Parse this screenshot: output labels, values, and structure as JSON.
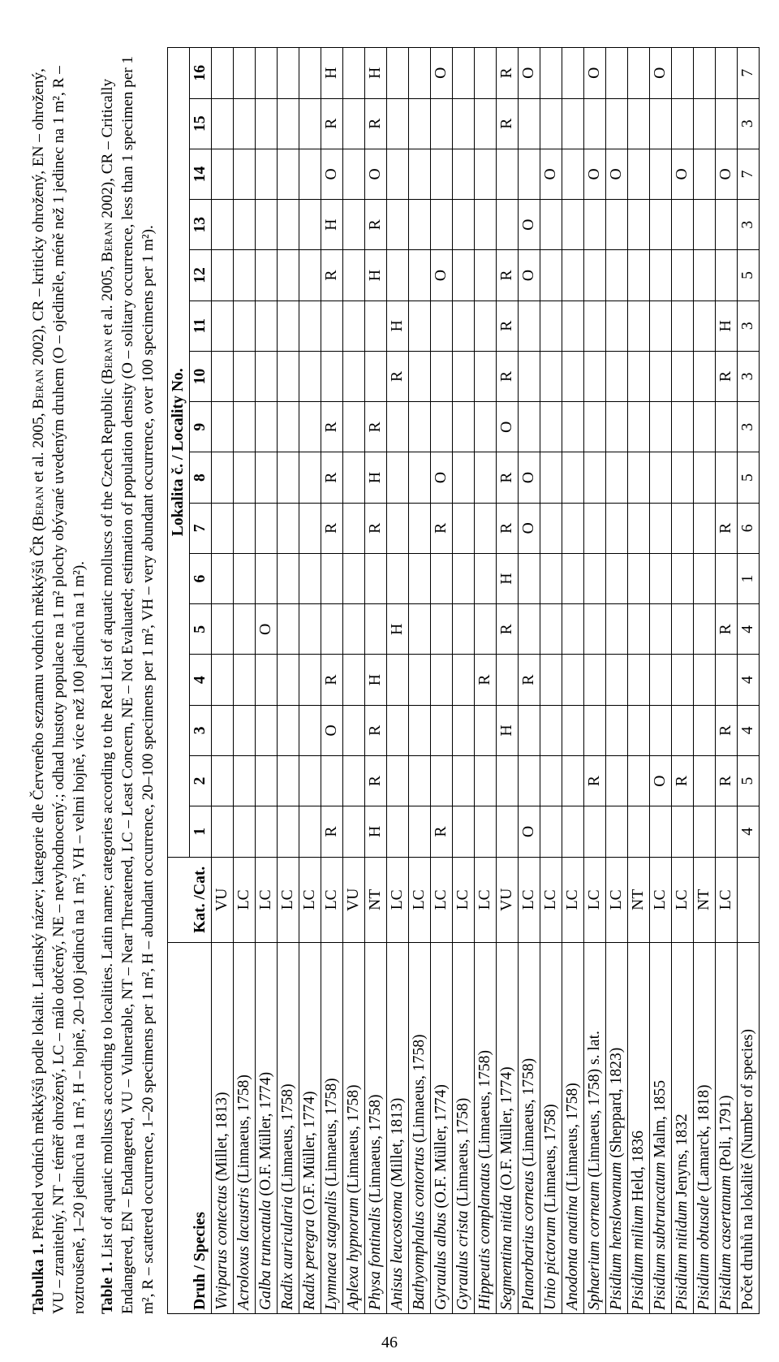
{
  "page_number": "46",
  "caption_cz_parts": [
    {
      "t": "Tabulka 1.",
      "b": true
    },
    {
      "t": " Přehled vodních měkkýšů podle lokalit. Latinský název; kategorie dle Červeného seznamu vodních měkkýšů ČR ("
    },
    {
      "t": "Beran",
      "sc": true
    },
    {
      "t": " et al. 2005, "
    },
    {
      "t": "Beran",
      "sc": true
    },
    {
      "t": " 2002), CR – kriticky ohrožený, EN – ohrožený, VU – zranitelný, NT – téměř ohrožený, LC – málo dotčený, NE – nevyhodnocený.; odhad hustoty populace na 1 m² plochy obývané uvedeným druhem (O – ojediněle, méně než 1 jedinec na 1 m², R – roztroušeně, 1–20 jedinců na 1 m², H – hojně, 20–100 jedinců na 1 m², VH – velmi hojně, více než 100 jedinců na 1 m²)."
    }
  ],
  "caption_en_parts": [
    {
      "t": "Table 1.",
      "b": true
    },
    {
      "t": " List of aquatic molluscs according to localities. Latin name; categories according to the Red List of aquatic molluscs of the Czech Republic ("
    },
    {
      "t": "Beran",
      "sc": true
    },
    {
      "t": " et al. 2005, "
    },
    {
      "t": "Beran",
      "sc": true
    },
    {
      "t": " 2002), CR – Critically Endangered, EN – Endangered, VU – Vulnerable, NT – Near Threatened, LC – Least Concern, NE – Not Evaluated; estimation of population density (O – solitary occurrence, less than 1 specimen per 1 m², R – scattered occurrence, 1–20 specimens per 1 m², H – abundant occurrence, 20–100 specimens per 1 m², VH – very abundant occurrence, over 100 specimens per 1 m²)."
    }
  ],
  "headers": {
    "species": "Druh / Species",
    "cat": "Kat. /Cat.",
    "locality": "Lokalita č. / Locality No.",
    "loc_nums": [
      "1",
      "2",
      "3",
      "4",
      "5",
      "6",
      "7",
      "8",
      "9",
      "10",
      "11",
      "12",
      "13",
      "14",
      "15",
      "16"
    ]
  },
  "rows": [
    {
      "sp_i": "Viviparus contectus",
      "sp_r": " (Millet, 1813)",
      "cat": "VU",
      "v": [
        "",
        "",
        "",
        "",
        "",
        "",
        "",
        "",
        "",
        "",
        "",
        "",
        "",
        "",
        "",
        ""
      ]
    },
    {
      "sp_i": "Acroloxus lacustris",
      "sp_r": " (Linnaeus, 1758)",
      "cat": "LC",
      "v": [
        "",
        "",
        "",
        "",
        "",
        "",
        "",
        "",
        "",
        "",
        "",
        "",
        "",
        "",
        "",
        ""
      ]
    },
    {
      "sp_i": "Galba truncatula",
      "sp_r": " (O.F. Müller, 1774)",
      "cat": "LC",
      "v": [
        "",
        "",
        "",
        "",
        "O",
        "",
        "",
        "",
        "",
        "",
        "",
        "",
        "",
        "",
        "",
        ""
      ]
    },
    {
      "sp_i": "Radix auricularia",
      "sp_r": " (Linnaeus, 1758)",
      "cat": "LC",
      "v": [
        "",
        "",
        "",
        "",
        "",
        "",
        "",
        "",
        "",
        "",
        "",
        "",
        "",
        "",
        "",
        ""
      ]
    },
    {
      "sp_i": "Radix peregra",
      "sp_r": " (O.F. Müller, 1774)",
      "cat": "LC",
      "v": [
        "",
        "",
        "",
        "",
        "",
        "",
        "",
        "",
        "",
        "",
        "",
        "",
        "",
        "",
        "",
        ""
      ]
    },
    {
      "sp_i": "Lymnaea stagnalis",
      "sp_r": " (Linnaeus, 1758)",
      "cat": "LC",
      "v": [
        "R",
        "",
        "O",
        "R",
        "",
        "",
        "R",
        "R",
        "R",
        "",
        "",
        "R",
        "H",
        "O",
        "R",
        "H"
      ]
    },
    {
      "sp_i": "Aplexa hypnorum",
      "sp_r": " (Linnaeus, 1758)",
      "cat": "VU",
      "v": [
        "",
        "",
        "",
        "",
        "",
        "",
        "",
        "",
        "",
        "",
        "",
        "",
        "",
        "",
        "",
        ""
      ]
    },
    {
      "sp_i": "Physa fontinalis",
      "sp_r": " (Linnaeus, 1758)",
      "cat": "NT",
      "v": [
        "H",
        "R",
        "R",
        "H",
        "",
        "",
        "R",
        "H",
        "R",
        "",
        "",
        "H",
        "R",
        "O",
        "R",
        "H"
      ]
    },
    {
      "sp_i": "Anisus leucostoma",
      "sp_r": " (Millet, 1813)",
      "cat": "LC",
      "v": [
        "",
        "",
        "",
        "",
        "H",
        "",
        "",
        "",
        "",
        "R",
        "H",
        "",
        "",
        "",
        "",
        ""
      ]
    },
    {
      "sp_i": "Bathyomphalus contortus",
      "sp_r": " (Linnaeus, 1758)",
      "cat": "LC",
      "v": [
        "",
        "",
        "",
        "",
        "",
        "",
        "",
        "",
        "",
        "",
        "",
        "",
        "",
        "",
        "",
        ""
      ]
    },
    {
      "sp_i": "Gyraulus albus",
      "sp_r": " (O.F. Müller, 1774)",
      "cat": "LC",
      "v": [
        "R",
        "",
        "",
        "",
        "",
        "",
        "R",
        "O",
        "",
        "",
        "",
        "O",
        "",
        "",
        "",
        "O"
      ]
    },
    {
      "sp_i": "Gyraulus crista",
      "sp_r": " (Linnaeus, 1758)",
      "cat": "LC",
      "v": [
        "",
        "",
        "",
        "",
        "",
        "",
        "",
        "",
        "",
        "",
        "",
        "",
        "",
        "",
        "",
        ""
      ]
    },
    {
      "sp_i": "Hippeutis complanatus",
      "sp_r": " (Linnaeus, 1758)",
      "cat": "LC",
      "v": [
        "",
        "",
        "",
        "R",
        "",
        "",
        "",
        "",
        "",
        "",
        "",
        "",
        "",
        "",
        "",
        ""
      ]
    },
    {
      "sp_i": "Segmentina nitida",
      "sp_r": " (O.F. Müller, 1774)",
      "cat": "VU",
      "v": [
        "",
        "",
        "H",
        "",
        "R",
        "H",
        "R",
        "R",
        "O",
        "R",
        "R",
        "R",
        "",
        "",
        "R",
        "R"
      ]
    },
    {
      "sp_i": "Planorbarius corneus",
      "sp_r": " (Linnaeus, 1758)",
      "cat": "LC",
      "v": [
        "O",
        "",
        "",
        "R",
        "",
        "",
        "O",
        "O",
        "",
        "",
        "",
        "O",
        "O",
        "",
        "",
        "O"
      ]
    },
    {
      "sp_i": "Unio pictorum",
      "sp_r": " (Linnaeus, 1758)",
      "cat": "LC",
      "v": [
        "",
        "",
        "",
        "",
        "",
        "",
        "",
        "",
        "",
        "",
        "",
        "",
        "",
        "O",
        "",
        ""
      ]
    },
    {
      "sp_i": "Anodonta anatina",
      "sp_r": " (Linnaeus, 1758)",
      "cat": "LC",
      "v": [
        "",
        "",
        "",
        "",
        "",
        "",
        "",
        "",
        "",
        "",
        "",
        "",
        "",
        "",
        "",
        ""
      ]
    },
    {
      "sp_i": "Sphaerium corneum",
      "sp_r": " (Linnaeus, 1758) s. lat.",
      "cat": "LC",
      "v": [
        "",
        "R",
        "",
        "",
        "",
        "",
        "",
        "",
        "",
        "",
        "",
        "",
        "",
        "O",
        "",
        "O"
      ]
    },
    {
      "sp_i": "Pisidium henslowanum",
      "sp_r": " (Sheppard, 1823)",
      "cat": "LC",
      "v": [
        "",
        "",
        "",
        "",
        "",
        "",
        "",
        "",
        "",
        "",
        "",
        "",
        "",
        "O",
        "",
        ""
      ]
    },
    {
      "sp_i": "Pisidium milium",
      "sp_r": " Held, 1836",
      "cat": "NT",
      "v": [
        "",
        "",
        "",
        "",
        "",
        "",
        "",
        "",
        "",
        "",
        "",
        "",
        "",
        "",
        "",
        ""
      ]
    },
    {
      "sp_i": "Pisidium subtruncatum",
      "sp_r": " Malm, 1855",
      "cat": "LC",
      "v": [
        "",
        "O",
        "",
        "",
        "",
        "",
        "",
        "",
        "",
        "",
        "",
        "",
        "",
        "",
        "",
        "O"
      ]
    },
    {
      "sp_i": "Pisidium nitidum",
      "sp_r": " Jenyns, 1832",
      "cat": "LC",
      "v": [
        "",
        "R",
        "",
        "",
        "",
        "",
        "",
        "",
        "",
        "",
        "",
        "",
        "",
        "O",
        "",
        ""
      ]
    },
    {
      "sp_i": "Pisidium obtusale",
      "sp_r": " (Lamarck, 1818)",
      "cat": "NT",
      "v": [
        "",
        "",
        "",
        "",
        "",
        "",
        "",
        "",
        "",
        "",
        "",
        "",
        "",
        "",
        "",
        ""
      ]
    },
    {
      "sp_i": "Pisidium casertanum",
      "sp_r": " (Poli, 1791)",
      "cat": "LC",
      "v": [
        "",
        "R",
        "R",
        "",
        "R",
        "",
        "R",
        "",
        "",
        "R",
        "H",
        "",
        "",
        "O",
        "",
        ""
      ]
    }
  ],
  "totals": {
    "label": "Počet druhů na lokalitě (Number of species)",
    "v": [
      "4",
      "5",
      "4",
      "4",
      "4",
      "1",
      "6",
      "5",
      "3",
      "3",
      "3",
      "5",
      "3",
      "7",
      "3",
      "7"
    ]
  }
}
